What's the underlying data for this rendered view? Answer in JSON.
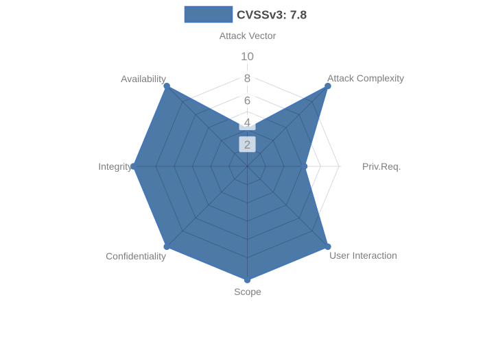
{
  "chart_data": {
    "type": "radar",
    "title": "",
    "legend": {
      "label": "CVSSv3: 7.8",
      "position": "top-center"
    },
    "axes": [
      "Attack Vector",
      "Attack Complexity",
      "Priv.Req.",
      "User Interaction",
      "Scope",
      "Confidentiality",
      "Integrity",
      "Availability"
    ],
    "series": [
      {
        "name": "CVSSv3: 7.8",
        "values": [
          3.3,
          10,
          5,
          10,
          10,
          10,
          10,
          10
        ]
      }
    ],
    "radial_ticks": [
      2,
      4,
      6,
      8,
      10
    ],
    "range": [
      0,
      10
    ],
    "grid": true,
    "grid_shape": "polygon",
    "colors": {
      "series_fill": "#4d79a7",
      "series_stroke": "#4377bd",
      "grid_light": "#d4d8de",
      "grid_inner": "rgba(42,62,92,0.42)",
      "tick_text": "#8c8c8c",
      "tick_box": "rgba(255,255,255,0.72)",
      "axis_text": "#7d7d7d",
      "legend_text": "#4a4a4a"
    }
  }
}
